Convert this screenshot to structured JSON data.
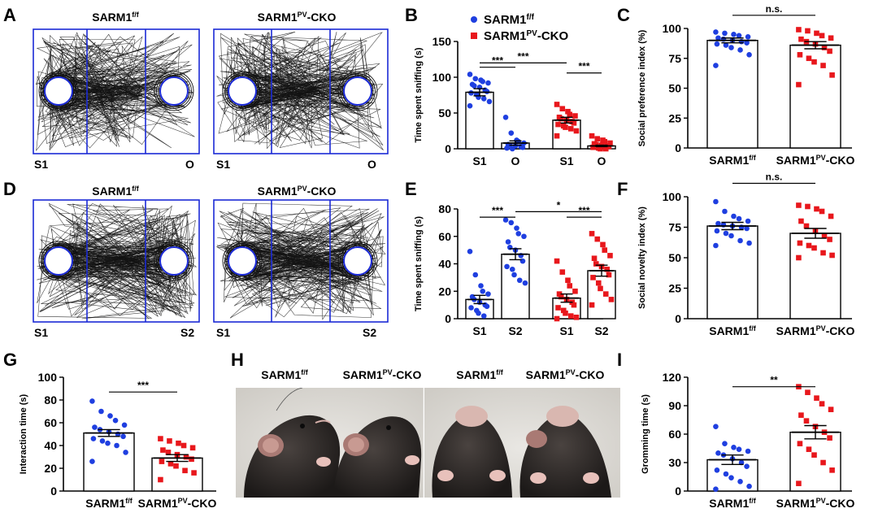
{
  "figure": {
    "panel_letters": [
      "A",
      "B",
      "C",
      "D",
      "E",
      "F",
      "G",
      "H",
      "I"
    ],
    "colors": {
      "ff": "#1f3fe0",
      "cko": "#e8171c",
      "arena": "#1b2ad6",
      "axis": "#000000"
    }
  },
  "tracks": [
    {
      "panel": "A",
      "title_base": "SARM1",
      "title_sup": "f/f",
      "left_label": "S1",
      "right_label": "O"
    },
    {
      "panel": "A",
      "title_base": "SARM1",
      "title_sup": "PV",
      "title_suffix": "-CKO",
      "left_label": "S1",
      "right_label": "O"
    },
    {
      "panel": "D",
      "title_base": "SARM1",
      "title_sup": "f/f",
      "left_label": "S1",
      "right_label": "S2"
    },
    {
      "panel": "D",
      "title_base": "SARM1",
      "title_sup": "PV",
      "title_suffix": "-CKO",
      "left_label": "S1",
      "right_label": "S2"
    }
  ],
  "photos": {
    "panel": "H",
    "labels": [
      {
        "base": "SARM1",
        "sup": "f/f",
        "suffix": ""
      },
      {
        "base": "SARM1",
        "sup": "PV",
        "suffix": "-CKO"
      },
      {
        "base": "SARM1",
        "sup": "f/f",
        "suffix": ""
      },
      {
        "base": "SARM1",
        "sup": "PV",
        "suffix": "-CKO"
      }
    ]
  },
  "chart_data": [
    {
      "panel": "B",
      "type": "scatter-bar",
      "ylabel": "Time spent sniffing (s)",
      "ylim": [
        0,
        150
      ],
      "yticks": [
        0,
        50,
        100,
        150
      ],
      "legend": [
        {
          "base": "SARM1",
          "sup": "f/f",
          "suffix": "",
          "marker": "circle"
        },
        {
          "base": "SARM1",
          "sup": "PV",
          "suffix": "-CKO",
          "marker": "square"
        }
      ],
      "groups": [
        {
          "label": "S1",
          "genotype": "ff",
          "mean": 79,
          "sem": 5,
          "points": [
            104,
            98,
            96,
            94,
            92,
            90,
            88,
            86,
            82,
            80,
            78,
            76,
            72,
            70,
            66,
            60
          ]
        },
        {
          "label": "O",
          "genotype": "ff",
          "mean": 8,
          "sem": 3,
          "points": [
            44,
            22,
            12,
            10,
            8,
            6,
            5,
            4,
            3,
            2,
            1,
            0
          ]
        },
        {
          "label": "S1",
          "genotype": "cko",
          "mean": 40,
          "sem": 4,
          "points": [
            62,
            56,
            52,
            48,
            46,
            44,
            42,
            40,
            38,
            36,
            34,
            32,
            30,
            28,
            25,
            18
          ]
        },
        {
          "label": "O",
          "genotype": "cko",
          "mean": 4,
          "sem": 1,
          "points": [
            18,
            14,
            12,
            10,
            8,
            7,
            6,
            5,
            4,
            3,
            2,
            1,
            0,
            0
          ]
        }
      ],
      "brackets": [
        {
          "from": 0,
          "to": 1,
          "label": "***",
          "y": 114
        },
        {
          "from": 0,
          "to": 2,
          "label": "***",
          "y": 120
        },
        {
          "from": 2,
          "to": 3,
          "label": "***",
          "y": 106
        }
      ]
    },
    {
      "panel": "C",
      "type": "scatter-bar",
      "ylabel": "Social preference index (%)",
      "ylim": [
        0,
        100
      ],
      "yticks": [
        0,
        25,
        50,
        75,
        100
      ],
      "groups": [
        {
          "label": "SARM1",
          "sup": "f/f",
          "suffix": "",
          "genotype": "ff",
          "mean": 90,
          "sem": 2,
          "points": [
            97,
            96,
            95,
            94,
            93,
            92,
            91,
            90,
            89,
            88,
            87,
            86,
            84,
            82,
            78,
            69
          ]
        },
        {
          "label": "SARM1",
          "sup": "PV",
          "suffix": "-CKO",
          "genotype": "cko",
          "mean": 86,
          "sem": 3,
          "points": [
            99,
            98,
            96,
            94,
            92,
            91,
            89,
            87,
            84,
            81,
            78,
            75,
            72,
            69,
            61,
            53
          ]
        }
      ],
      "brackets": [
        {
          "from": 0,
          "to": 1,
          "label": "n.s.",
          "y": 111
        }
      ]
    },
    {
      "panel": "E",
      "type": "scatter-bar",
      "ylabel": "Time spent sniffing (s)",
      "ylim": [
        0,
        80
      ],
      "yticks": [
        0,
        20,
        40,
        60,
        80
      ],
      "groups": [
        {
          "label": "S1",
          "genotype": "ff",
          "mean": 14,
          "sem": 3,
          "points": [
            49,
            32,
            24,
            20,
            18,
            16,
            14,
            12,
            10,
            9,
            8,
            6,
            4,
            2
          ]
        },
        {
          "label": "S2",
          "genotype": "ff",
          "mean": 47,
          "sem": 4,
          "points": [
            72,
            70,
            66,
            62,
            60,
            56,
            52,
            50,
            46,
            42,
            38,
            36,
            32,
            28,
            26
          ]
        },
        {
          "label": "S1",
          "genotype": "cko",
          "mean": 15,
          "sem": 3,
          "points": [
            42,
            34,
            28,
            24,
            20,
            18,
            16,
            14,
            12,
            10,
            8,
            6,
            4,
            2,
            1,
            0
          ]
        },
        {
          "label": "S2",
          "genotype": "cko",
          "mean": 35,
          "sem": 4,
          "points": [
            62,
            58,
            54,
            50,
            46,
            44,
            40,
            38,
            36,
            32,
            30,
            26,
            22,
            18,
            14,
            10
          ]
        }
      ],
      "brackets": [
        {
          "from": 0,
          "to": 1,
          "label": "***",
          "y": 74
        },
        {
          "from": 1,
          "to": 3,
          "label": "*",
          "y": 78
        },
        {
          "from": 2,
          "to": 3,
          "label": "***",
          "y": 74
        }
      ]
    },
    {
      "panel": "F",
      "type": "scatter-bar",
      "ylabel": "Social novelty index (%)",
      "ylim": [
        0,
        100
      ],
      "yticks": [
        0,
        25,
        50,
        75,
        100
      ],
      "groups": [
        {
          "label": "SARM1",
          "sup": "f/f",
          "suffix": "",
          "genotype": "ff",
          "mean": 76,
          "sem": 3,
          "points": [
            96,
            88,
            84,
            82,
            80,
            78,
            77,
            76,
            75,
            74,
            72,
            70,
            68,
            64,
            62,
            60
          ]
        },
        {
          "label": "SARM1",
          "sup": "PV",
          "suffix": "-CKO",
          "genotype": "cko",
          "mean": 70,
          "sem": 4,
          "points": [
            93,
            92,
            90,
            88,
            84,
            80,
            76,
            72,
            68,
            65,
            62,
            60,
            58,
            54,
            52,
            50
          ]
        }
      ],
      "brackets": [
        {
          "from": 0,
          "to": 1,
          "label": "n.s.",
          "y": 111
        }
      ]
    },
    {
      "panel": "G",
      "type": "scatter-bar",
      "ylabel": "Interaction time (s)",
      "ylim": [
        0,
        100
      ],
      "yticks": [
        0,
        20,
        40,
        60,
        80,
        100
      ],
      "groups": [
        {
          "label": "SARM1",
          "sup": "f/f",
          "suffix": "",
          "genotype": "ff",
          "mean": 51,
          "sem": 3,
          "points": [
            79,
            70,
            66,
            62,
            58,
            56,
            54,
            52,
            50,
            48,
            46,
            44,
            42,
            40,
            34,
            26
          ]
        },
        {
          "label": "SARM1",
          "sup": "PV",
          "suffix": "-CKO",
          "genotype": "cko",
          "mean": 29,
          "sem": 3,
          "points": [
            46,
            44,
            42,
            40,
            38,
            36,
            34,
            32,
            30,
            28,
            26,
            24,
            22,
            18,
            16,
            10
          ]
        }
      ],
      "brackets": [
        {
          "from": 0,
          "to": 1,
          "label": "***",
          "y": 87
        }
      ]
    },
    {
      "panel": "I",
      "type": "scatter-bar",
      "ylabel": "Gromming time (s)",
      "ylim": [
        0,
        120
      ],
      "yticks": [
        0,
        30,
        60,
        90,
        120
      ],
      "groups": [
        {
          "label": "SARM1",
          "sup": "f/f",
          "suffix": "",
          "genotype": "ff",
          "mean": 33,
          "sem": 5,
          "points": [
            68,
            50,
            46,
            44,
            42,
            40,
            38,
            34,
            30,
            26,
            22,
            18,
            14,
            10,
            5,
            2
          ]
        },
        {
          "label": "SARM1",
          "sup": "PV",
          "suffix": "-CKO",
          "genotype": "cko",
          "mean": 62,
          "sem": 7,
          "points": [
            110,
            104,
            98,
            92,
            86,
            80,
            74,
            68,
            62,
            56,
            50,
            44,
            38,
            30,
            22,
            8
          ]
        }
      ],
      "brackets": [
        {
          "from": 0,
          "to": 1,
          "label": "**",
          "y": 110
        }
      ]
    }
  ]
}
